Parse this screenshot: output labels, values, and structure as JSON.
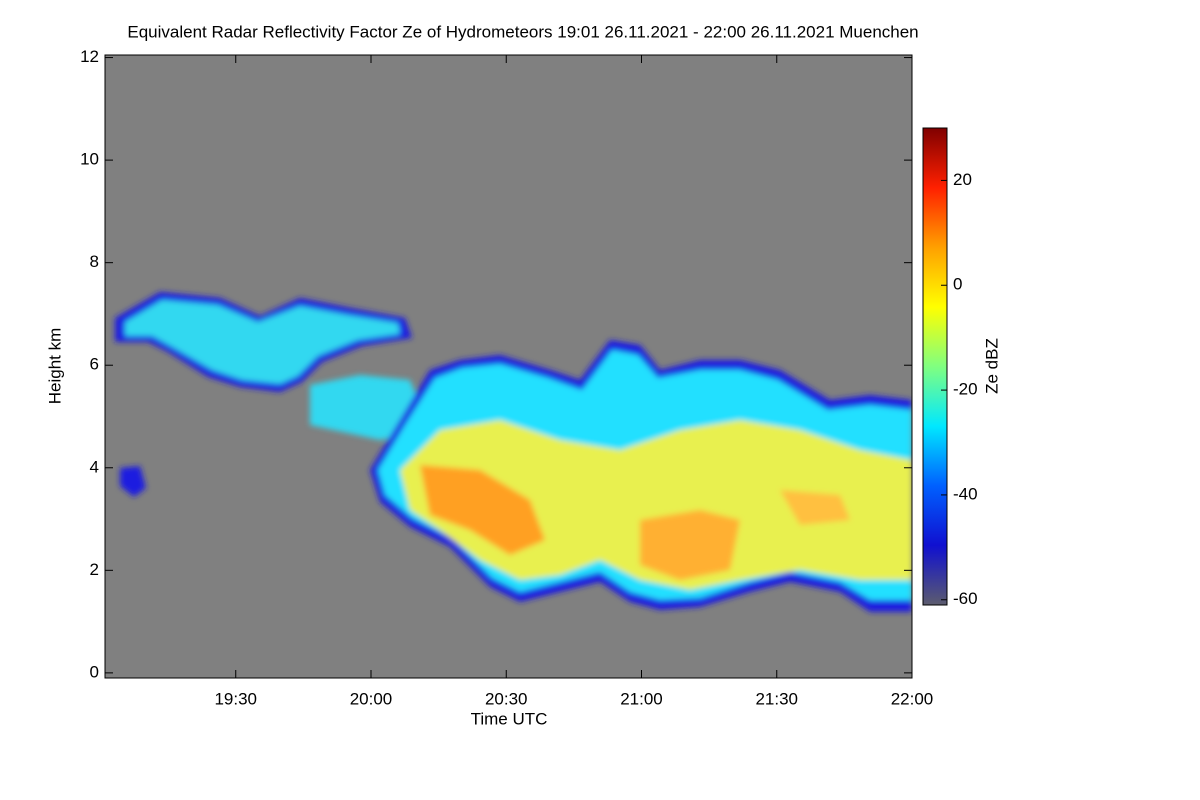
{
  "chart_data": {
    "type": "heatmap",
    "title": "Equivalent Radar Reflectivity Factor Ze of Hydrometeors   19:01 26.11.2021 - 22:00 26.11.2021 Muenchen",
    "x_label": "Time UTC",
    "y_label": "Height km",
    "xlim": [
      "19:01",
      "22:00"
    ],
    "xticks": [
      "19:30",
      "20:00",
      "20:30",
      "21:00",
      "21:30",
      "22:00"
    ],
    "ylim": [
      -0.1,
      12.05
    ],
    "yticks": [
      0,
      2,
      4,
      6,
      8,
      10,
      12
    ],
    "colorbar": {
      "label": "Ze dBZ",
      "lim": [
        -61,
        30
      ],
      "ticks": [
        -60,
        -40,
        -20,
        0,
        20
      ],
      "colormap": [
        "#5c5c6e",
        "#1010d0",
        "#0060ff",
        "#00e8ff",
        "#80ff80",
        "#ffff00",
        "#ffa000",
        "#ff2000",
        "#800000"
      ]
    },
    "background": "#808080"
  }
}
